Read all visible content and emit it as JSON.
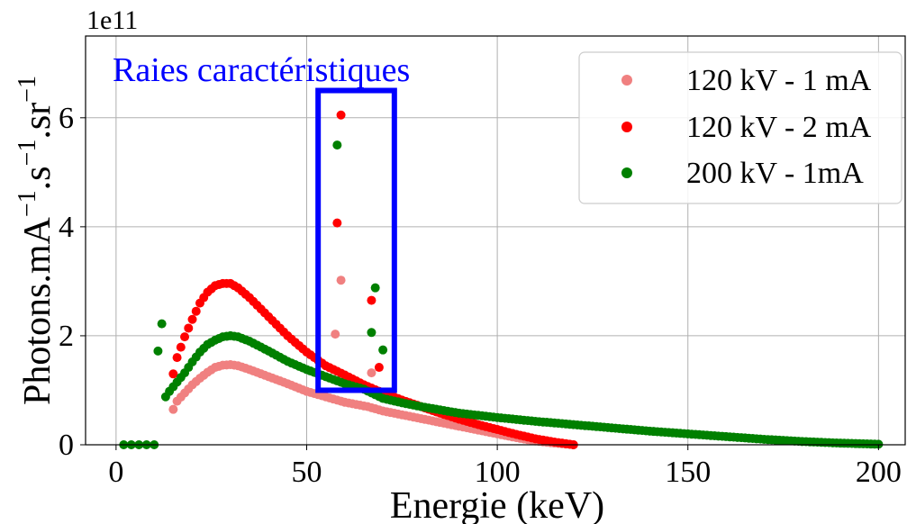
{
  "chart_data": {
    "type": "scatter",
    "title": "",
    "xlabel": "Energie (keV)",
    "ylabel": "Photons.mA",
    "ylabel_sup1": "−1",
    "ylabel_mid": ".s",
    "ylabel_sup2": "−1",
    "ylabel_mid2": ".sr",
    "ylabel_sup3": "−1",
    "offset_text": "1e11",
    "annotation": "Raies caractéristiques",
    "xlim": [
      -8,
      207
    ],
    "ylim": [
      0,
      7.5
    ],
    "y_scale_note": "values in units of 1e11",
    "xticks": [
      0,
      50,
      100,
      150,
      200
    ],
    "xtick_labels": [
      "0",
      "50",
      "100",
      "150",
      "200"
    ],
    "yticks": [
      0,
      2,
      4,
      6
    ],
    "ytick_labels": [
      "0",
      "2",
      "4",
      "6"
    ],
    "grid": true,
    "legend_position": "top-right",
    "highlight_box": {
      "x": [
        53,
        73
      ],
      "y": [
        1.0,
        6.5
      ]
    },
    "series": [
      {
        "name": "120 kV - 1 mA",
        "color": "#f08080",
        "points": [
          [
            15,
            0.65
          ],
          [
            16,
            0.8
          ],
          [
            18,
            0.95
          ],
          [
            20,
            1.1
          ],
          [
            22,
            1.22
          ],
          [
            24,
            1.33
          ],
          [
            26,
            1.42
          ],
          [
            28,
            1.46
          ],
          [
            30,
            1.47
          ],
          [
            32,
            1.45
          ],
          [
            35,
            1.38
          ],
          [
            40,
            1.25
          ],
          [
            45,
            1.12
          ],
          [
            50,
            0.98
          ],
          [
            55,
            0.88
          ],
          [
            58,
            0.82
          ],
          [
            60,
            0.78
          ],
          [
            63,
            0.74
          ],
          [
            66,
            0.7
          ],
          [
            70,
            0.62
          ],
          [
            75,
            0.55
          ],
          [
            80,
            0.48
          ],
          [
            85,
            0.41
          ],
          [
            90,
            0.34
          ],
          [
            95,
            0.27
          ],
          [
            100,
            0.2
          ],
          [
            105,
            0.13
          ],
          [
            110,
            0.07
          ],
          [
            115,
            0.03
          ],
          [
            120,
            0.0
          ]
        ],
        "lines": [
          [
            57.5,
            2.03
          ],
          [
            59,
            3.02
          ],
          [
            67,
            1.32
          ]
        ]
      },
      {
        "name": "120 kV - 2 mA",
        "color": "#ff0000",
        "points": [
          [
            15,
            1.3
          ],
          [
            16,
            1.6
          ],
          [
            18,
            1.98
          ],
          [
            20,
            2.3
          ],
          [
            22,
            2.6
          ],
          [
            24,
            2.8
          ],
          [
            26,
            2.92
          ],
          [
            28,
            2.96
          ],
          [
            30,
            2.96
          ],
          [
            32,
            2.88
          ],
          [
            35,
            2.7
          ],
          [
            40,
            2.35
          ],
          [
            45,
            2.0
          ],
          [
            50,
            1.7
          ],
          [
            55,
            1.45
          ],
          [
            60,
            1.28
          ],
          [
            65,
            1.1
          ],
          [
            70,
            0.95
          ],
          [
            75,
            0.82
          ],
          [
            80,
            0.7
          ],
          [
            85,
            0.58
          ],
          [
            90,
            0.47
          ],
          [
            95,
            0.37
          ],
          [
            100,
            0.28
          ],
          [
            105,
            0.19
          ],
          [
            110,
            0.11
          ],
          [
            115,
            0.05
          ],
          [
            120,
            0.0
          ]
        ],
        "lines": [
          [
            58,
            4.07
          ],
          [
            59,
            6.05
          ],
          [
            67,
            2.65
          ],
          [
            69,
            1.42
          ]
        ]
      },
      {
        "name": "200 kV - 1mA",
        "color": "#008000",
        "points": [
          [
            2,
            0.0
          ],
          [
            4,
            0.0
          ],
          [
            6,
            0.0
          ],
          [
            8,
            0.0
          ],
          [
            10,
            0.0
          ],
          [
            11,
            1.72
          ],
          [
            12,
            2.22
          ],
          [
            13,
            0.88
          ],
          [
            14,
            0.98
          ],
          [
            16,
            1.15
          ],
          [
            18,
            1.32
          ],
          [
            20,
            1.52
          ],
          [
            22,
            1.7
          ],
          [
            24,
            1.84
          ],
          [
            26,
            1.92
          ],
          [
            28,
            1.98
          ],
          [
            30,
            2.0
          ],
          [
            32,
            1.98
          ],
          [
            35,
            1.9
          ],
          [
            40,
            1.72
          ],
          [
            45,
            1.53
          ],
          [
            50,
            1.38
          ],
          [
            55,
            1.25
          ],
          [
            60,
            1.12
          ],
          [
            65,
            1.02
          ],
          [
            70,
            0.85
          ],
          [
            75,
            0.77
          ],
          [
            80,
            0.7
          ],
          [
            85,
            0.64
          ],
          [
            90,
            0.58
          ],
          [
            95,
            0.54
          ],
          [
            100,
            0.5
          ],
          [
            110,
            0.43
          ],
          [
            120,
            0.37
          ],
          [
            130,
            0.31
          ],
          [
            140,
            0.25
          ],
          [
            150,
            0.2
          ],
          [
            160,
            0.15
          ],
          [
            170,
            0.1
          ],
          [
            180,
            0.06
          ],
          [
            190,
            0.03
          ],
          [
            200,
            0.01
          ]
        ],
        "lines": [
          [
            58,
            5.5
          ],
          [
            67,
            2.06
          ],
          [
            68,
            2.88
          ],
          [
            70,
            1.74
          ]
        ]
      }
    ]
  }
}
